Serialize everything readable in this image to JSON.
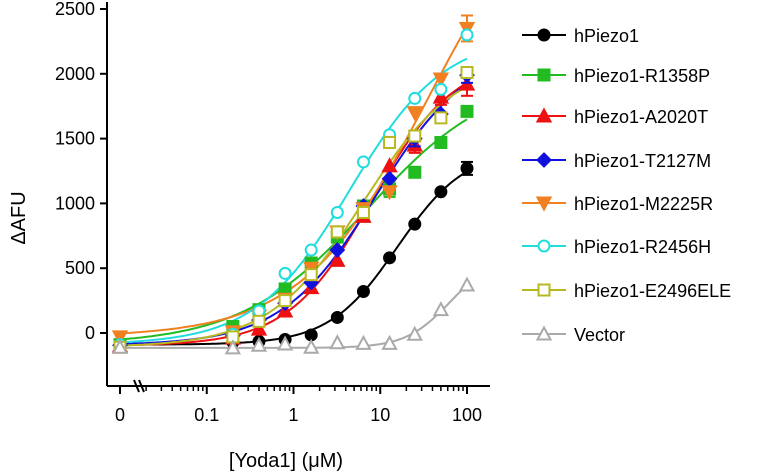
{
  "chart_data": {
    "type": "scatter",
    "title": "",
    "xlabel": "[Yoda1] (μM)",
    "ylabel": "ΔAFU",
    "xscale": "log",
    "xlim": [
      0.008,
      130
    ],
    "ylim": [
      -400,
      2500
    ],
    "x_ticks": [
      {
        "value": 0.01,
        "label": "0"
      },
      {
        "value": 0.1,
        "label": "0.1"
      },
      {
        "value": 1,
        "label": "1"
      },
      {
        "value": 10,
        "label": "10"
      },
      {
        "value": 100,
        "label": "100"
      }
    ],
    "y_ticks": [
      0,
      500,
      1000,
      1500,
      2000,
      2500
    ],
    "legend_position": "right",
    "series": [
      {
        "name": "hPiezo1",
        "color": "#000000",
        "marker": "circle",
        "filled": true,
        "x": [
          0.01,
          0.2,
          0.4,
          0.8,
          1.6,
          3.2,
          6.4,
          12.8,
          25,
          50,
          100
        ],
        "y": [
          -90,
          -70,
          -65,
          -50,
          -15,
          120,
          320,
          580,
          840,
          1090,
          1270
        ],
        "err": [
          0,
          0,
          0,
          0,
          0,
          0,
          0,
          0,
          0,
          0,
          50
        ]
      },
      {
        "name": "hPiezo1-R1358P",
        "color": "#22bb22",
        "marker": "square",
        "filled": true,
        "x": [
          0.01,
          0.2,
          0.4,
          0.8,
          1.6,
          3.2,
          6.4,
          12.8,
          25,
          50,
          100
        ],
        "y": [
          -90,
          50,
          180,
          340,
          540,
          740,
          980,
          1110,
          1240,
          1470,
          1710
        ],
        "err": [
          0,
          0,
          0,
          0,
          0,
          0,
          0,
          60,
          0,
          0,
          0
        ]
      },
      {
        "name": "hPiezo1-A2020T",
        "color": "#ee1111",
        "marker": "triangle-up",
        "filled": true,
        "x": [
          0.01,
          0.2,
          0.4,
          0.8,
          1.6,
          3.2,
          6.4,
          12.8,
          25,
          50,
          100
        ],
        "y": [
          -100,
          -40,
          30,
          170,
          350,
          560,
          900,
          1290,
          1450,
          1820,
          1920
        ],
        "err": [
          0,
          0,
          0,
          0,
          0,
          0,
          0,
          0,
          60,
          60,
          90
        ]
      },
      {
        "name": "hPiezo1-T2127M",
        "color": "#1111dd",
        "marker": "diamond",
        "filled": true,
        "x": [
          0.01,
          0.2,
          0.4,
          0.8,
          1.6,
          3.2,
          6.4,
          12.8,
          25,
          50,
          100
        ],
        "y": [
          -95,
          -20,
          100,
          230,
          390,
          640,
          980,
          1190,
          1500,
          1690,
          1990
        ],
        "err": [
          0,
          0,
          0,
          0,
          0,
          0,
          0,
          0,
          60,
          0,
          60
        ]
      },
      {
        "name": "hPiezo1-M2225R",
        "color": "#f08020",
        "marker": "triangle-down",
        "filled": true,
        "x": [
          0.01,
          0.2,
          0.4,
          0.8,
          1.6,
          3.2,
          6.4,
          12.8,
          25,
          50,
          100
        ],
        "y": [
          -30,
          10,
          130,
          260,
          500,
          780,
          960,
          1090,
          1700,
          1960,
          2350
        ],
        "err": [
          0,
          0,
          0,
          0,
          0,
          0,
          0,
          0,
          0,
          0,
          100
        ]
      },
      {
        "name": "hPiezo1-R2456H",
        "color": "#22dddd",
        "marker": "circle",
        "filled": false,
        "x": [
          0.01,
          0.2,
          0.4,
          0.8,
          1.6,
          3.2,
          6.4,
          12.8,
          25,
          50,
          100
        ],
        "y": [
          -90,
          -10,
          170,
          460,
          640,
          930,
          1320,
          1530,
          1810,
          1880,
          2300
        ],
        "err": [
          0,
          0,
          0,
          0,
          0,
          0,
          0,
          0,
          0,
          0,
          0
        ]
      },
      {
        "name": "hPiezo1-E2496ELE",
        "color": "#b8b820",
        "marker": "square",
        "filled": false,
        "x": [
          0.01,
          0.2,
          0.4,
          0.8,
          1.6,
          3.2,
          6.4,
          12.8,
          25,
          50,
          100
        ],
        "y": [
          -110,
          -30,
          90,
          250,
          450,
          780,
          930,
          1470,
          1520,
          1660,
          2010
        ],
        "err": [
          0,
          0,
          0,
          0,
          0,
          0,
          0,
          0,
          0,
          0,
          0
        ]
      },
      {
        "name": "Vector",
        "color": "#aaaaaa",
        "marker": "triangle-up",
        "filled": false,
        "x": [
          0.01,
          0.2,
          0.4,
          0.8,
          1.6,
          3.2,
          6.4,
          12.8,
          25,
          50,
          100
        ],
        "y": [
          -110,
          -115,
          -95,
          -85,
          -110,
          -75,
          -80,
          -80,
          -10,
          180,
          370
        ],
        "err": [
          0,
          0,
          0,
          0,
          0,
          0,
          0,
          0,
          0,
          0,
          0
        ]
      }
    ]
  }
}
